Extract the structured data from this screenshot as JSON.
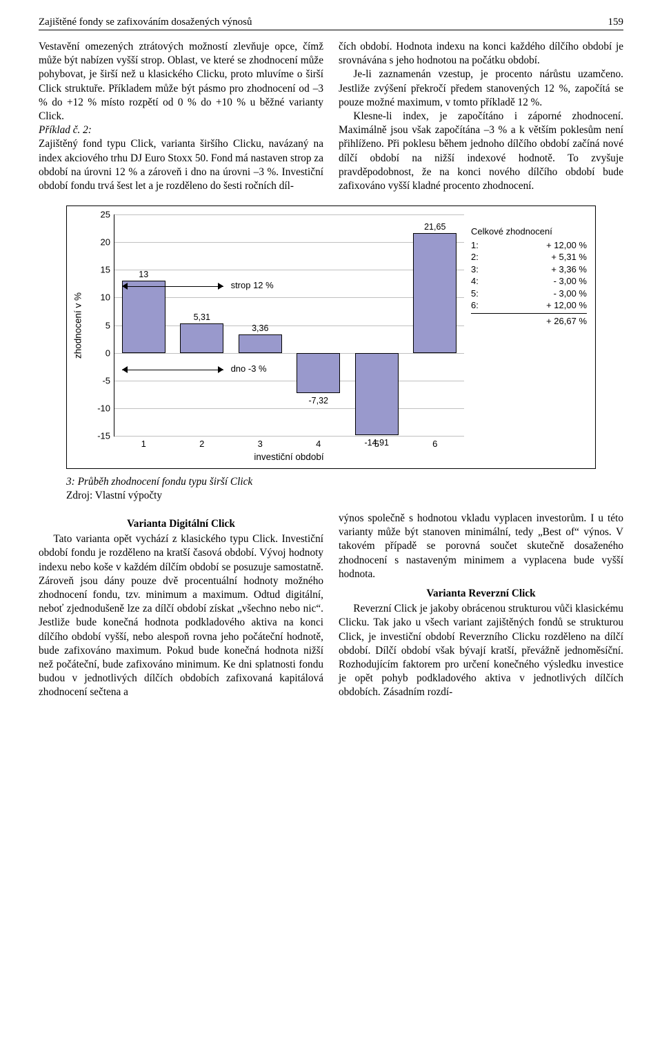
{
  "running_head": {
    "title": "Zajištěné fondy se zafixováním dosažených výnosů",
    "page_number": "159"
  },
  "col_text": {
    "p1": "Vestavění omezených ztrátových možností zlevňuje opce, čímž může být nabízen vyšší strop. Oblast, ve které se zhodnocení může pohybovat, je širší než u klasického Clicku, proto mluvíme o širší Click struktuře. Příkladem může být pásmo pro zhodnocení od –3 % do +12 % místo rozpětí od 0 % do +10 % u běžné varianty Click.",
    "example_label": "Příklad č. 2:",
    "p2": "Zajištěný fond typu Click, varianta širšího Clicku, navázaný na index akciového trhu DJ Euro Stoxx 50. Fond má nastaven strop za období na úrovni 12 % a zároveň i dno na úrovni –3 %. Investiční období fondu trvá šest let a je rozděleno do šesti ročních díl-",
    "p3": "čích období. Hodnota indexu na konci každého dílčího období je srovnávána s jeho hodnotou na počátku období.",
    "p4": "Je-li zaznamenán vzestup, je procento nárůstu uzamčeno. Jestliže zvýšení překročí předem stanovených 12 %, započítá se pouze možné maximum, v tomto příkladě 12 %.",
    "p5": "Klesne-li index, je započítáno i záporné zhodnocení. Maximálně jsou však započítána –3 % a k větším poklesům není přihlíženo. Při poklesu během jednoho dílčího období začíná nové dílčí období na nižší indexové hodnotě. To zvyšuje pravděpodobnost, že na konci nového dílčího období bude zafixováno vyšší kladné procento zhodnocení."
  },
  "chart": {
    "type": "bar",
    "ylabel": "zhodnocení v %",
    "xlabel": "investiční období",
    "ylim": [
      -15,
      25
    ],
    "ytick_step": 5,
    "yticks": [
      -15,
      -10,
      -5,
      0,
      5,
      10,
      15,
      20,
      25
    ],
    "categories": [
      "1",
      "2",
      "3",
      "4",
      "5",
      "6"
    ],
    "values": [
      13,
      5.31,
      3.36,
      -7.32,
      -14.91,
      21.65
    ],
    "bar_labels": [
      "13",
      "5,31",
      "3,36",
      "-7,32",
      "-14,91",
      "21,65"
    ],
    "bar_color": "#9999cc",
    "bar_border": "#000000",
    "bar_width": 0.75,
    "grid_color": "#c0c0c0",
    "background_color": "#ffffff",
    "label_fontsize": 13,
    "title_fontsize": 13,
    "strop_label": "strop 12 %",
    "dno_label": "dno -3 %",
    "strop_value": 12,
    "dno_value": -3,
    "arrow_span_bars": 2
  },
  "side_panel": {
    "header": "Celkové zhodnocení",
    "rows": [
      {
        "k": "1:",
        "v": "+ 12,00 %"
      },
      {
        "k": "2:",
        "v": "+  5,31 %"
      },
      {
        "k": "3:",
        "v": "+  3,36 %"
      },
      {
        "k": "4:",
        "v": "-  3,00 %"
      },
      {
        "k": "5:",
        "v": "-  3,00 %"
      },
      {
        "k": "6:",
        "v": "+ 12,00 %"
      }
    ],
    "total": "+ 26,67 %"
  },
  "caption": {
    "fig": "3: Průběh zhodnocení fondu typu širší Click",
    "source": "Zdroj: Vlastní výpočty"
  },
  "lower": {
    "left_title": "Varianta Digitální Click",
    "left_p1": "Tato varianta opět vychází z klasického typu Click. Investiční období fondu je rozděleno na kratší časová období. Vývoj hodnoty indexu nebo koše v každém dílčím období se posuzuje samostatně. Zároveň jsou dány pouze dvě procentuální hodnoty možného zhodnocení fondu, tzv. minimum a maximum. Odtud digitální, neboť zjednodušeně lze za dílčí období získat „všechno nebo nic“. Jestliže bude konečná hodnota podkladového aktiva na konci dílčího období vyšší, nebo alespoň rovna jeho počáteční hodnotě, bude zafixováno maximum. Pokud bude konečná hodnota nižší než počáteční, bude zafixováno minimum. Ke dni splatnosti fondu budou v jednotlivých dílčích obdobích zafixovaná kapitálová zhodnocení sečtena a",
    "right_p1": "výnos společně s hodnotou vkladu vyplacen investorům. I u této varianty může být stanoven minimální, tedy „Best of“ výnos. V takovém případě se porovná součet skutečně dosaženého zhodnocení s nastaveným minimem a vyplacena bude vyšší hodnota.",
    "right_title": "Varianta Reverzní Click",
    "right_p2": "Reverzní Click je jakoby obrácenou strukturou vůči klasickému Clicku. Tak jako u všech variant zajištěných fondů se strukturou Click, je investiční období Reverzního Clicku rozděleno na dílčí období. Dílčí období však bývají kratší, převážně jednoměsíční. Rozhodujícím faktorem pro určení konečného výsledku investice je opět pohyb podkladového aktiva v jednotlivých dílčích obdobích. Zásadním rozdí-"
  }
}
